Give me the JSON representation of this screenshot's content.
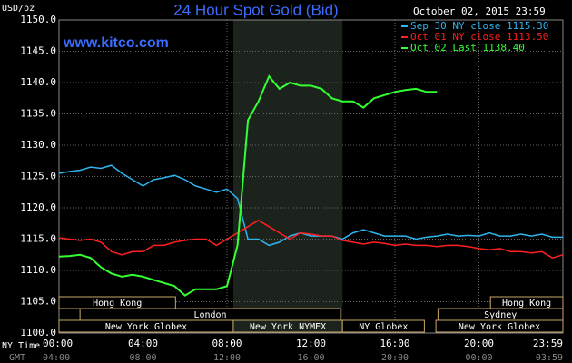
{
  "chart_data": {
    "type": "line",
    "title": "24 Hour Spot Gold (Bid)",
    "y_label": "USD/oz",
    "watermark": "www.kitco.com",
    "timestamp": "October 02, 2015 23:59",
    "x_label": "NY Time",
    "x2_label": "GMT",
    "x": [
      0,
      0.5,
      1,
      1.5,
      2,
      2.5,
      3,
      3.5,
      4,
      4.5,
      5,
      5.5,
      6,
      6.5,
      7,
      7.5,
      8,
      8.5,
      9,
      9.5,
      10,
      10.5,
      11,
      11.5,
      12,
      12.5,
      13,
      13.5,
      14,
      14.5,
      15,
      15.5,
      16,
      16.5,
      17,
      17.5,
      18,
      18.5,
      19,
      19.5,
      20,
      20.5,
      21,
      21.5,
      22,
      22.5,
      23,
      23.5,
      24
    ],
    "series": [
      {
        "name": "Sep 30 NY close 1115.30",
        "color": "#2fb4f0",
        "values": [
          1125.5,
          1125.8,
          1126,
          1126.5,
          1126.3,
          1126.8,
          1125.5,
          1124.5,
          1123.5,
          1124.5,
          1124.8,
          1125.2,
          1124.5,
          1123.5,
          1123,
          1122.5,
          1123,
          1121.5,
          1115,
          1115,
          1114,
          1114.5,
          1115.5,
          1116,
          1115.5,
          1115.5,
          1115.5,
          1115,
          1116,
          1116.5,
          1116,
          1115.5,
          1115.5,
          1115.5,
          1115,
          1115.3,
          1115.5,
          1115.8,
          1115.5,
          1115.6,
          1115.5,
          1116,
          1115.5,
          1115.5,
          1115.8,
          1115.5,
          1115.8,
          1115.3,
          1115.3
        ]
      },
      {
        "name": "Oct 01 NY close 1113.50",
        "color": "#ff1f1f",
        "values": [
          1115.2,
          1115,
          1114.8,
          1115,
          1114.5,
          1113,
          1112.5,
          1113,
          1113,
          1114,
          1114,
          1114.5,
          1114.8,
          1115,
          1115,
          1114,
          1115,
          1116,
          1117,
          1118,
          1117,
          1116,
          1115,
          1116,
          1115.8,
          1115.5,
          1115.5,
          1114.8,
          1114.5,
          1114.2,
          1114.5,
          1114.3,
          1114,
          1114.2,
          1114,
          1114,
          1113.8,
          1114,
          1114,
          1113.8,
          1113.5,
          1113.3,
          1113.5,
          1113,
          1113,
          1112.8,
          1113,
          1112,
          1112.5
        ]
      },
      {
        "name": "Oct 02 Last 1138.40",
        "color": "#33ff33",
        "values": [
          1112.2,
          1112.3,
          1112.5,
          1112,
          1110.5,
          1109.5,
          1109,
          1109.3,
          1109,
          1108.5,
          1108,
          1107.5,
          1106,
          1107,
          1107,
          1107,
          1107.5,
          1114,
          1134,
          1137,
          1141,
          1139,
          1140,
          1139.5,
          1139.5,
          1139,
          1137.5,
          1137,
          1137,
          1136,
          1137.5,
          1138,
          1138.5,
          1138.8,
          1139,
          1138.5,
          1138.5,
          null,
          null,
          null,
          null,
          null,
          null,
          null,
          null,
          null,
          null,
          null,
          null
        ]
      }
    ],
    "xlim": [
      0,
      24
    ],
    "xticks": [
      {
        "value": 0,
        "label": "00:00"
      },
      {
        "value": 4,
        "label": "04:00"
      },
      {
        "value": 8,
        "label": "08:00"
      },
      {
        "value": 12,
        "label": "12:00"
      },
      {
        "value": 16,
        "label": "16:00"
      },
      {
        "value": 20,
        "label": "20:00"
      },
      {
        "value": 24,
        "label": "23:59"
      }
    ],
    "x2ticks": [
      {
        "value": 0,
        "label": "04:00"
      },
      {
        "value": 4,
        "label": "08:00"
      },
      {
        "value": 8,
        "label": "12:00"
      },
      {
        "value": 12,
        "label": "16:00"
      },
      {
        "value": 16,
        "label": "20:00"
      },
      {
        "value": 20,
        "label": "00:00"
      },
      {
        "value": 24,
        "label": "03:59"
      }
    ],
    "ylim": [
      1100,
      1150
    ],
    "yticks": [
      {
        "value": 1100,
        "label": "1100.0"
      },
      {
        "value": 1105,
        "label": "1105.0"
      },
      {
        "value": 1110,
        "label": "1110.0"
      },
      {
        "value": 1115,
        "label": "1115.0"
      },
      {
        "value": 1120,
        "label": "1120.0"
      },
      {
        "value": 1125,
        "label": "1125.0"
      },
      {
        "value": 1130,
        "label": "1130.0"
      },
      {
        "value": 1135,
        "label": "1135.0"
      },
      {
        "value": 1140,
        "label": "1140.0"
      },
      {
        "value": 1145,
        "label": "1145.0"
      },
      {
        "value": 1150,
        "label": "1150.0"
      }
    ],
    "grid": true,
    "sessions": [
      {
        "name": "Hong Kong",
        "row": 0,
        "start": 0,
        "end": 5.55
      },
      {
        "name": "Hong Kong",
        "row": 0,
        "start": 20.55,
        "end": 24
      },
      {
        "name": "London",
        "row": 1,
        "start": 1,
        "end": 13.4
      },
      {
        "name": "Sydney",
        "row": 1,
        "start": 18.05,
        "end": 24
      },
      {
        "name": "New York Globex",
        "row": 2,
        "start": 0,
        "end": 8.3
      },
      {
        "name": "New York NYMEX",
        "row": 2,
        "start": 8.3,
        "end": 13.5
      },
      {
        "name": "NY Globex",
        "row": 2,
        "start": 13.5,
        "end": 17.4
      },
      {
        "name": "New York Globex",
        "row": 2,
        "start": 17.95,
        "end": 24
      }
    ],
    "shaded_session": 5
  }
}
